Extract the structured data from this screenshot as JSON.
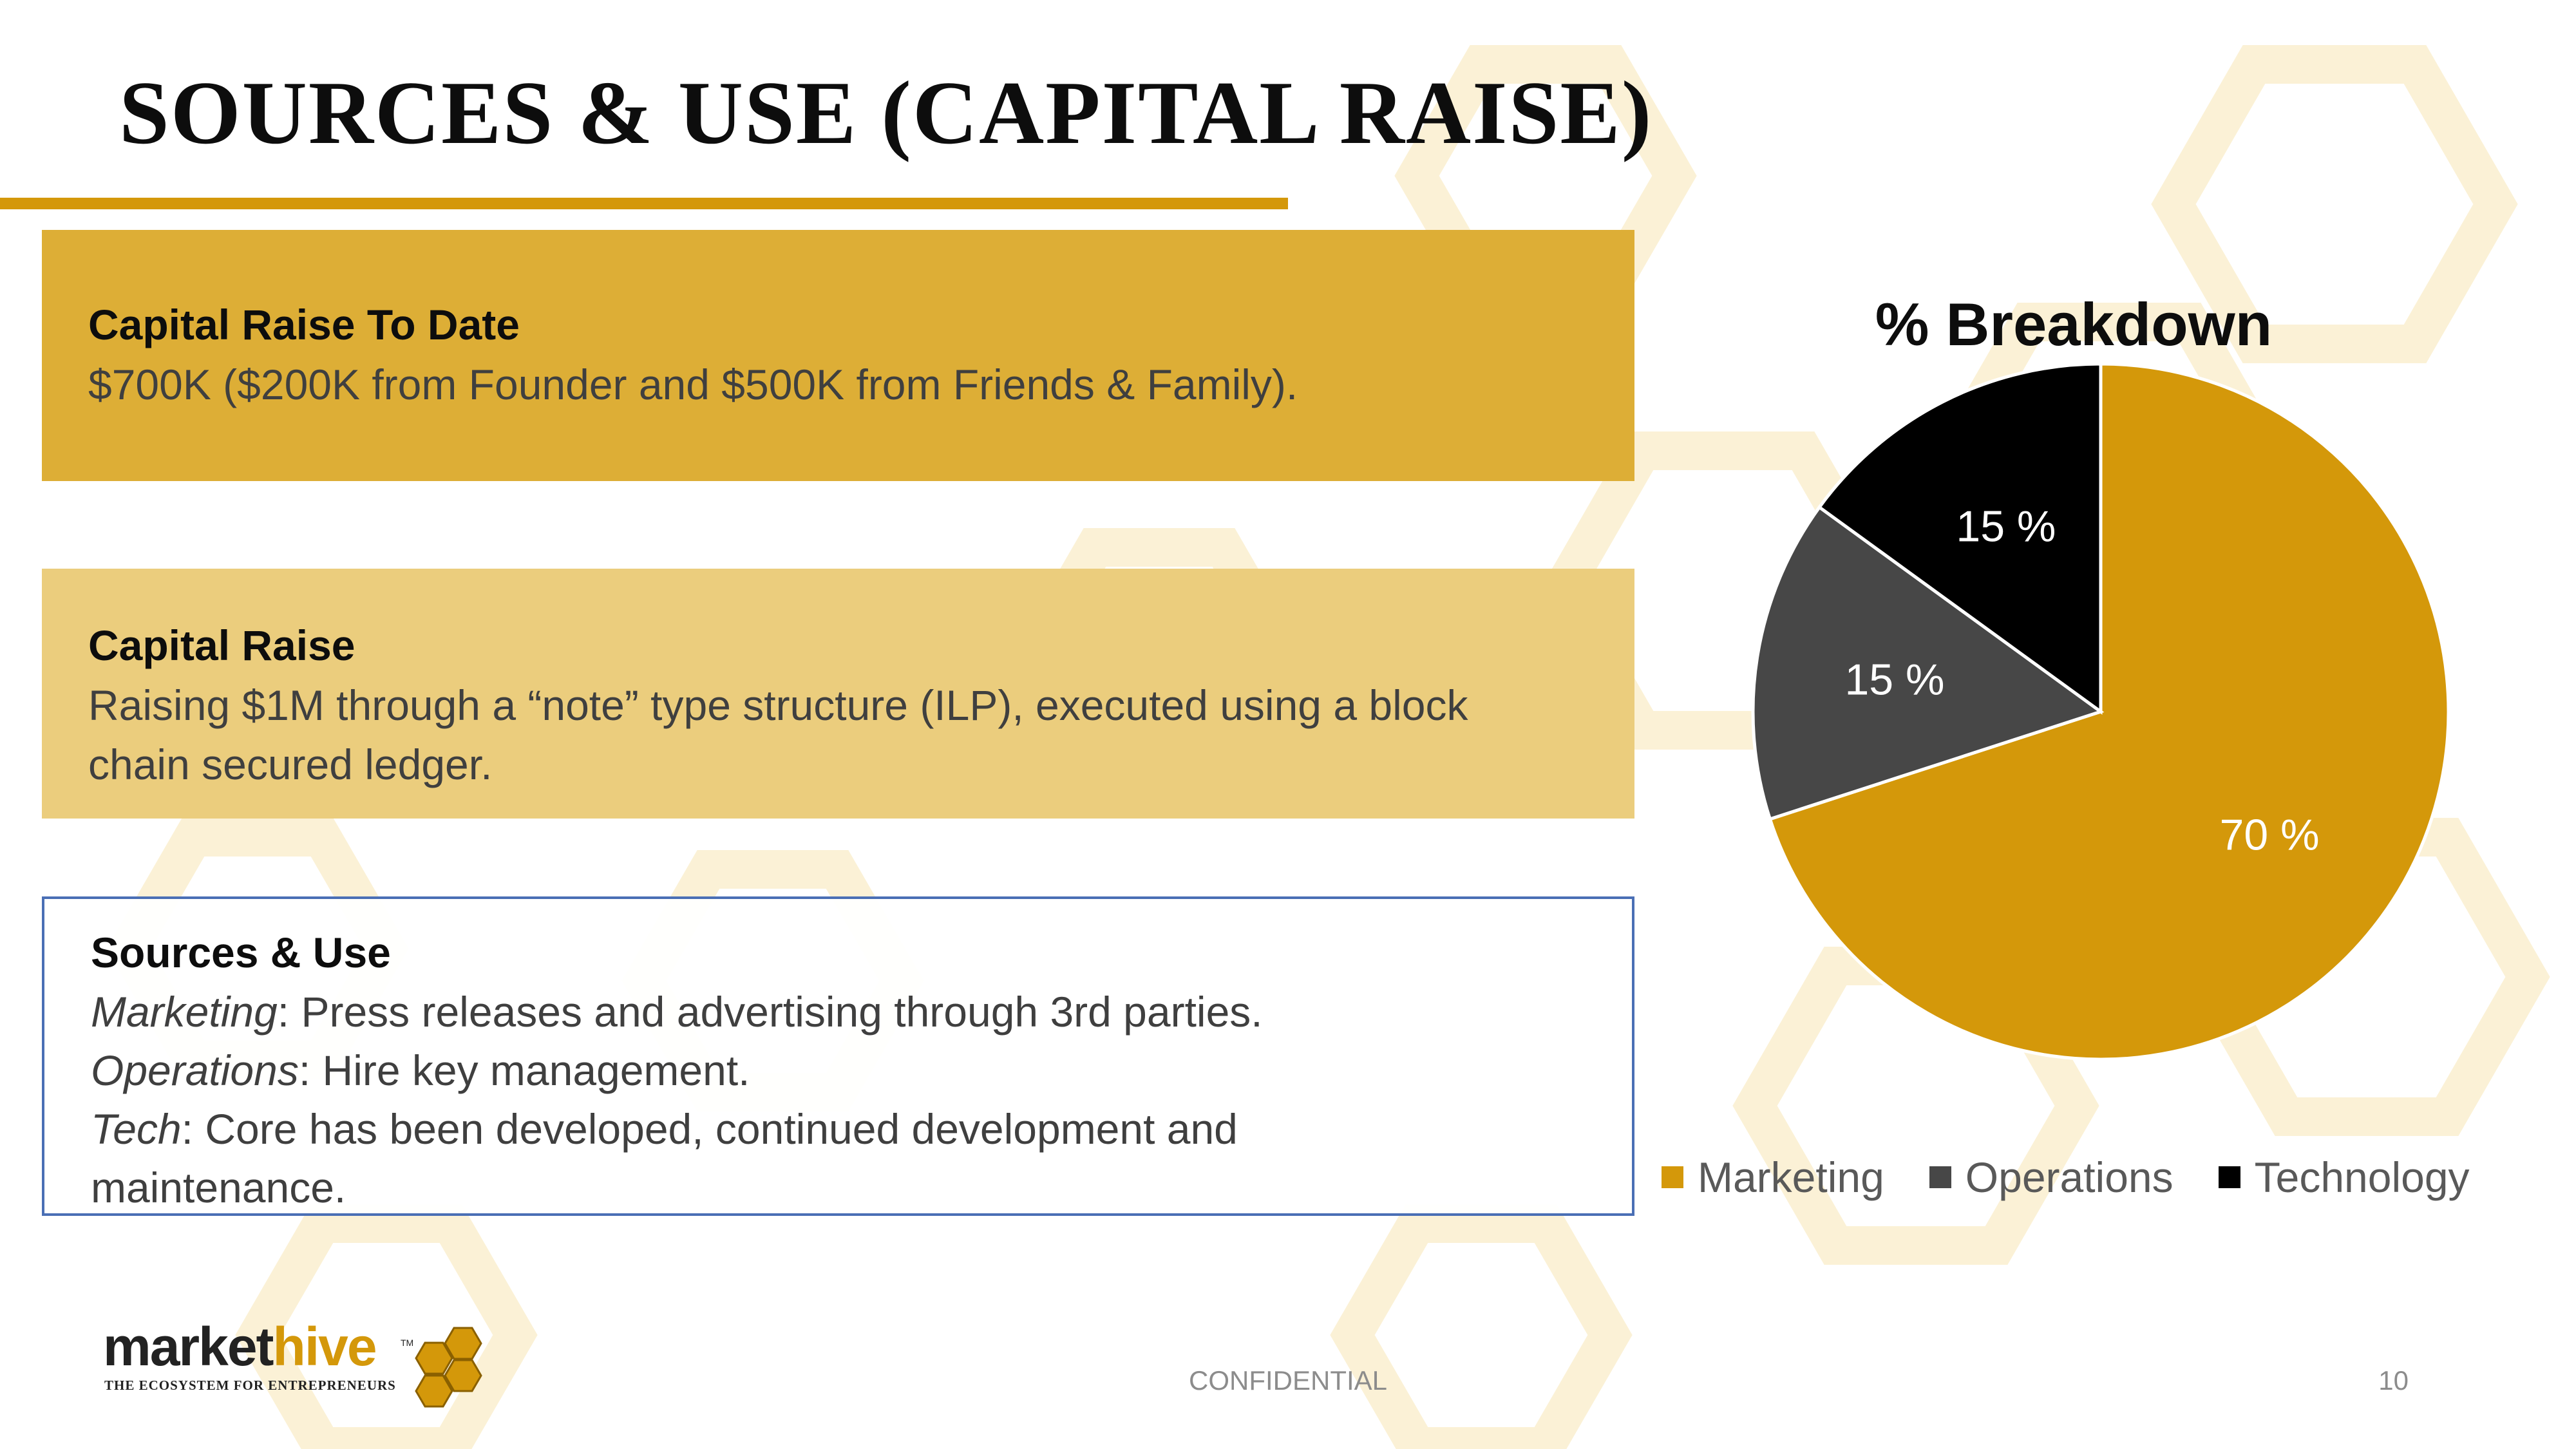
{
  "slide": {
    "title": "SOURCES & USE (CAPITAL RAISE)",
    "footer": "CONFIDENTIAL",
    "page_number": "10"
  },
  "boxes": {
    "capital_to_date": {
      "heading": "Capital Raise To Date",
      "body": "$700K ($200K from Founder and $500K from Friends & Family)."
    },
    "capital_raise": {
      "heading": "Capital Raise",
      "line1": "Raising $1M through  a “note” type structure (ILP), executed using a block",
      "line2": "chain secured ledger."
    },
    "sources_use": {
      "heading": "Sources & Use",
      "items": [
        {
          "term": "Marketing",
          "text": ": Press releases and advertising through 3rd parties."
        },
        {
          "term": "Operations",
          "text": ": Hire key management."
        },
        {
          "term": "Tech",
          "text": ": Core has been developed, continued development and"
        }
      ],
      "continuation": "maintenance."
    }
  },
  "logo": {
    "wordmark_dark": "market",
    "wordmark_accent": "hive",
    "trademark": "TM",
    "tagline": "THE ECOSYSTEM FOR ENTREPRENEURS"
  },
  "colors": {
    "accent": "#d4980a",
    "box1": "#ddae36",
    "box2": "#ebcd7d",
    "box3_border": "#4a6fb5",
    "title": "#0d0d0d"
  },
  "chart_data": {
    "type": "pie",
    "title": "% Breakdown",
    "categories": [
      "Marketing",
      "Operations",
      "Technology"
    ],
    "values": [
      70,
      15,
      15
    ],
    "labels": [
      "70 %",
      "15 %",
      "15 %"
    ],
    "colors": [
      "#d4980a",
      "#474747",
      "#000000"
    ],
    "legend_position": "bottom"
  }
}
